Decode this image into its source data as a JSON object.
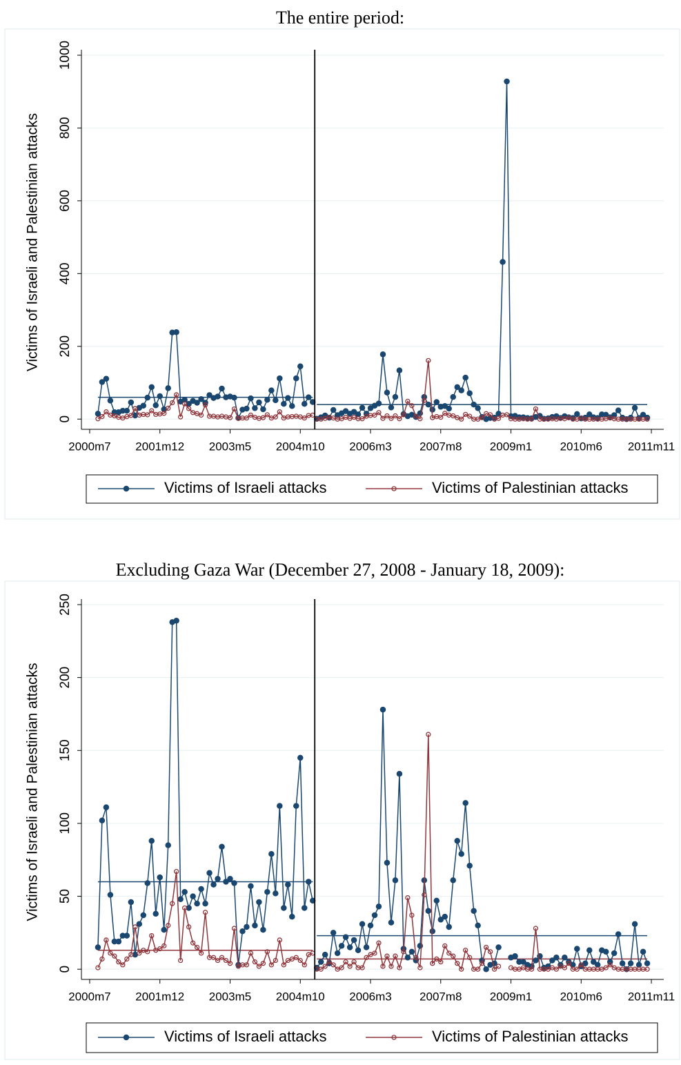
{
  "chart_data": [
    {
      "type": "line",
      "title": "The entire period:",
      "y_label": "Victims of Israeli and Palestinian attacks",
      "x": [
        488,
        489,
        490,
        491,
        492,
        493,
        494,
        495,
        496,
        497,
        498,
        499,
        500,
        501,
        502,
        503,
        504,
        505,
        506,
        507,
        508,
        509,
        510,
        511,
        512,
        513,
        514,
        515,
        516,
        517,
        518,
        519,
        520,
        521,
        522,
        523,
        524,
        525,
        526,
        527,
        528,
        529,
        530,
        531,
        532,
        533,
        534,
        535,
        536,
        537,
        538,
        539,
        540,
        541,
        542,
        543,
        544,
        545,
        546,
        547,
        548,
        549,
        550,
        551,
        552,
        553,
        554,
        555,
        556,
        557,
        558,
        559,
        560,
        561,
        562,
        563,
        564,
        565,
        566,
        567,
        568,
        569,
        570,
        571,
        572,
        573,
        574,
        575,
        576,
        577,
        578,
        579,
        580,
        581,
        582,
        583,
        584,
        585,
        586,
        587,
        588,
        589,
        590,
        591,
        592,
        593,
        594,
        595,
        596,
        597,
        598,
        599,
        600,
        601,
        602,
        603,
        604,
        605,
        606,
        607,
        608,
        609,
        610,
        611,
        612,
        613,
        614,
        615,
        616,
        617,
        618,
        619,
        620,
        621
      ],
      "series": [
        {
          "name": "Victims of Israeli attacks",
          "color": "#1a476f",
          "marker": "filled",
          "values": [
            15,
            102,
            111,
            51,
            19,
            19,
            23,
            23,
            46,
            10,
            31,
            37,
            59,
            88,
            38,
            63,
            27,
            85,
            238,
            239,
            48,
            53,
            42,
            50,
            45,
            55,
            45,
            66,
            58,
            62,
            84,
            60,
            62,
            59,
            3,
            26,
            29,
            57,
            30,
            46,
            27,
            53,
            79,
            52,
            112,
            42,
            58,
            36,
            112,
            145,
            42,
            60,
            47,
            1,
            5,
            10,
            4,
            25,
            11,
            16,
            22,
            15,
            20,
            13,
            31,
            15,
            30,
            37,
            43,
            178,
            73,
            32,
            61,
            134,
            14,
            8,
            12,
            6,
            16,
            61,
            40,
            26,
            47,
            34,
            36,
            29,
            61,
            88,
            79,
            114,
            71,
            40,
            30,
            6,
            0,
            3,
            4,
            15,
            432,
            928,
            8,
            9,
            5,
            5,
            3,
            2,
            6,
            9,
            1,
            2,
            6,
            8,
            3,
            8,
            5,
            3,
            14,
            2,
            4,
            13,
            5,
            3,
            13,
            12,
            5,
            11,
            24,
            4,
            0,
            4,
            31,
            3,
            12,
            4
          ]
        },
        {
          "name": "Victims of Palestinian attacks",
          "color": "#90353b",
          "marker": "hollow",
          "values": [
            1,
            7,
            20,
            11,
            9,
            5,
            3,
            7,
            10,
            29,
            11,
            13,
            12,
            23,
            13,
            14,
            16,
            30,
            45,
            67,
            6,
            42,
            29,
            18,
            15,
            11,
            39,
            8,
            8,
            6,
            8,
            6,
            4,
            28,
            2,
            3,
            3,
            11,
            5,
            2,
            4,
            12,
            3,
            6,
            20,
            3,
            6,
            7,
            8,
            6,
            3,
            10,
            11,
            0,
            0,
            2,
            5,
            3,
            0,
            1,
            5,
            2,
            5,
            1,
            1,
            8,
            10,
            11,
            18,
            2,
            9,
            2,
            9,
            1,
            12,
            49,
            37,
            8,
            1,
            51,
            161,
            4,
            7,
            5,
            16,
            11,
            9,
            4,
            0,
            13,
            8,
            0,
            0,
            4,
            15,
            12,
            0,
            2,
            11,
            12,
            1,
            0,
            0,
            1,
            0,
            0,
            28,
            0,
            0,
            0,
            1,
            0,
            2,
            1,
            4,
            0,
            0,
            3,
            0,
            0,
            0,
            0,
            0,
            1,
            3,
            1,
            0,
            0,
            0,
            0,
            0,
            0,
            0,
            0
          ]
        }
      ],
      "mean_lines": [
        {
          "x": [
            488,
            540
          ],
          "value": 60,
          "color": "#1a476f"
        },
        {
          "x": [
            541,
            621
          ],
          "value": 40,
          "color": "#1a476f"
        }
      ],
      "vline": 540.5,
      "xlim": [
        484,
        625
      ],
      "ylim": [
        -28,
        1000
      ],
      "xticks": [
        {
          "value": 486,
          "label": "2000m7"
        },
        {
          "value": 503,
          "label": "2001m12"
        },
        {
          "value": 520,
          "label": "2003m5"
        },
        {
          "value": 537,
          "label": "2004m10"
        },
        {
          "value": 554,
          "label": "2006m3"
        },
        {
          "value": 571,
          "label": "2007m8"
        },
        {
          "value": 588,
          "label": "2009m1"
        },
        {
          "value": 605,
          "label": "2010m6"
        },
        {
          "value": 622,
          "label": "2011m11"
        }
      ],
      "yticks": [
        0,
        200,
        400,
        600,
        800,
        1000
      ],
      "grid": true
    },
    {
      "type": "line",
      "title": "Excluding Gaza War (December 27, 2008 - January 18, 2009):",
      "y_label": "Victims of Israeli and Palestinian attacks",
      "x": [
        488,
        489,
        490,
        491,
        492,
        493,
        494,
        495,
        496,
        497,
        498,
        499,
        500,
        501,
        502,
        503,
        504,
        505,
        506,
        507,
        508,
        509,
        510,
        511,
        512,
        513,
        514,
        515,
        516,
        517,
        518,
        519,
        520,
        521,
        522,
        523,
        524,
        525,
        526,
        527,
        528,
        529,
        530,
        531,
        532,
        533,
        534,
        535,
        536,
        537,
        538,
        539,
        540,
        541,
        542,
        543,
        544,
        545,
        546,
        547,
        548,
        549,
        550,
        551,
        552,
        553,
        554,
        555,
        556,
        557,
        558,
        559,
        560,
        561,
        562,
        563,
        564,
        565,
        566,
        567,
        568,
        569,
        570,
        571,
        572,
        573,
        574,
        575,
        576,
        577,
        578,
        579,
        580,
        581,
        582,
        583,
        584,
        585,
        586,
        587,
        588,
        589,
        590,
        591,
        592,
        593,
        594,
        595,
        596,
        597,
        598,
        599,
        600,
        601,
        602,
        603,
        604,
        605,
        606,
        607,
        608,
        609,
        610,
        611,
        612,
        613,
        614,
        615,
        616,
        617,
        618,
        619,
        620,
        621
      ],
      "series": [
        {
          "name": "Victims of Israeli attacks",
          "color": "#1a476f",
          "marker": "filled",
          "values": [
            15,
            102,
            111,
            51,
            19,
            19,
            23,
            23,
            46,
            10,
            31,
            37,
            59,
            88,
            38,
            63,
            27,
            85,
            238,
            239,
            48,
            53,
            42,
            50,
            45,
            55,
            45,
            66,
            58,
            62,
            84,
            60,
            62,
            59,
            3,
            26,
            29,
            57,
            30,
            46,
            27,
            53,
            79,
            52,
            112,
            42,
            58,
            36,
            112,
            145,
            42,
            60,
            47,
            1,
            5,
            10,
            4,
            25,
            11,
            16,
            22,
            15,
            20,
            13,
            31,
            15,
            30,
            37,
            43,
            178,
            73,
            32,
            61,
            134,
            14,
            8,
            12,
            6,
            16,
            61,
            40,
            26,
            47,
            34,
            36,
            29,
            61,
            88,
            79,
            114,
            71,
            40,
            30,
            6,
            0,
            3,
            4,
            15,
            null,
            null,
            8,
            9,
            5,
            5,
            3,
            2,
            6,
            9,
            1,
            2,
            6,
            8,
            3,
            8,
            5,
            3,
            14,
            2,
            4,
            13,
            5,
            3,
            13,
            12,
            5,
            11,
            24,
            4,
            0,
            4,
            31,
            3,
            12,
            4
          ]
        },
        {
          "name": "Victims of Palestinian attacks",
          "color": "#90353b",
          "marker": "hollow",
          "values": [
            1,
            7,
            20,
            11,
            9,
            5,
            3,
            7,
            10,
            29,
            11,
            13,
            12,
            23,
            13,
            14,
            16,
            30,
            45,
            67,
            6,
            42,
            29,
            18,
            15,
            11,
            39,
            8,
            8,
            6,
            8,
            6,
            4,
            28,
            2,
            3,
            3,
            11,
            5,
            2,
            4,
            12,
            3,
            6,
            20,
            3,
            6,
            7,
            8,
            6,
            3,
            10,
            11,
            0,
            0,
            2,
            5,
            3,
            0,
            1,
            5,
            2,
            5,
            1,
            1,
            8,
            10,
            11,
            18,
            2,
            9,
            2,
            9,
            1,
            12,
            49,
            37,
            8,
            1,
            51,
            161,
            4,
            7,
            5,
            16,
            11,
            9,
            4,
            0,
            13,
            8,
            0,
            0,
            4,
            15,
            12,
            0,
            2,
            null,
            null,
            1,
            0,
            0,
            1,
            0,
            0,
            28,
            0,
            0,
            0,
            1,
            0,
            2,
            1,
            4,
            0,
            0,
            3,
            0,
            0,
            0,
            0,
            0,
            1,
            3,
            1,
            0,
            0,
            0,
            0,
            0,
            0,
            0,
            0
          ]
        }
      ],
      "mean_lines": [
        {
          "x": [
            488,
            540
          ],
          "value": 60,
          "color": "#1a476f"
        },
        {
          "x": [
            541,
            621
          ],
          "value": 23,
          "color": "#1a476f"
        },
        {
          "x": [
            488,
            540
          ],
          "value": 13,
          "color": "#90353b"
        },
        {
          "x": [
            541,
            621
          ],
          "value": 7,
          "color": "#90353b"
        }
      ],
      "vline": 540.5,
      "xlim": [
        484,
        625
      ],
      "ylim": [
        -7,
        250
      ],
      "xticks": [
        {
          "value": 486,
          "label": "2000m7"
        },
        {
          "value": 503,
          "label": "2001m12"
        },
        {
          "value": 520,
          "label": "2003m5"
        },
        {
          "value": 537,
          "label": "2004m10"
        },
        {
          "value": 554,
          "label": "2006m3"
        },
        {
          "value": 571,
          "label": "2007m8"
        },
        {
          "value": 588,
          "label": "2009m1"
        },
        {
          "value": 605,
          "label": "2010m6"
        },
        {
          "value": 622,
          "label": "2011m11"
        }
      ],
      "yticks": [
        0,
        50,
        100,
        150,
        200,
        250
      ],
      "grid": true
    }
  ]
}
